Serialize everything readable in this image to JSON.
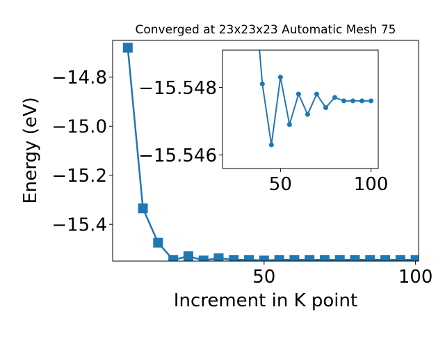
{
  "chart_data": [
    {
      "type": "line",
      "title": "Converged at 23x23x23 Automatic Mesh 75",
      "xlabel": "Increment in K point",
      "ylabel": "Energy (eV)",
      "xlim": [
        0,
        101
      ],
      "ylim": [
        -15.55,
        -14.65
      ],
      "xticks": [
        50,
        100
      ],
      "xtick_labels": [
        "50",
        "100"
      ],
      "yticks": [
        -14.8,
        -15.0,
        -15.2,
        -15.4
      ],
      "ytick_labels": [
        "−14.8",
        "−15.0",
        "−15.2",
        "−15.4"
      ],
      "grid": false,
      "marker": "square",
      "color": "#1f77b4",
      "x": [
        5,
        10,
        15,
        20,
        25,
        30,
        35,
        40,
        45,
        50,
        55,
        60,
        65,
        70,
        75,
        80,
        85,
        90,
        95,
        100
      ],
      "y": [
        -14.68,
        -15.335,
        -15.475,
        -15.545,
        -15.53,
        -15.547,
        -15.538,
        -15.545,
        -15.545,
        -15.547,
        -15.545,
        -15.545,
        -15.545,
        -15.545,
        -15.545,
        -15.545,
        -15.545,
        -15.545,
        -15.545,
        -15.545
      ]
    },
    {
      "type": "line",
      "title": "",
      "xlabel": "",
      "ylabel": "",
      "xlim": [
        18,
        104
      ],
      "ylim": [
        -15.5456,
        -15.5491
      ],
      "xticks": [
        50,
        100
      ],
      "xtick_labels": [
        "50",
        "100"
      ],
      "yticks": [
        -15.548,
        -15.546
      ],
      "ytick_labels": [
        "−15.548",
        "−15.546"
      ],
      "grid": false,
      "marker": "circle",
      "color": "#1f77b4",
      "x": [
        35,
        40,
        45,
        50,
        55,
        60,
        65,
        70,
        75,
        80,
        85,
        90,
        95,
        100
      ],
      "y": [
        -15.5513,
        -15.5481,
        -15.5463,
        -15.5483,
        -15.5469,
        -15.5478,
        -15.5472,
        -15.5478,
        -15.5474,
        -15.5477,
        -15.5476,
        -15.5476,
        -15.5476,
        -15.5476
      ]
    }
  ]
}
